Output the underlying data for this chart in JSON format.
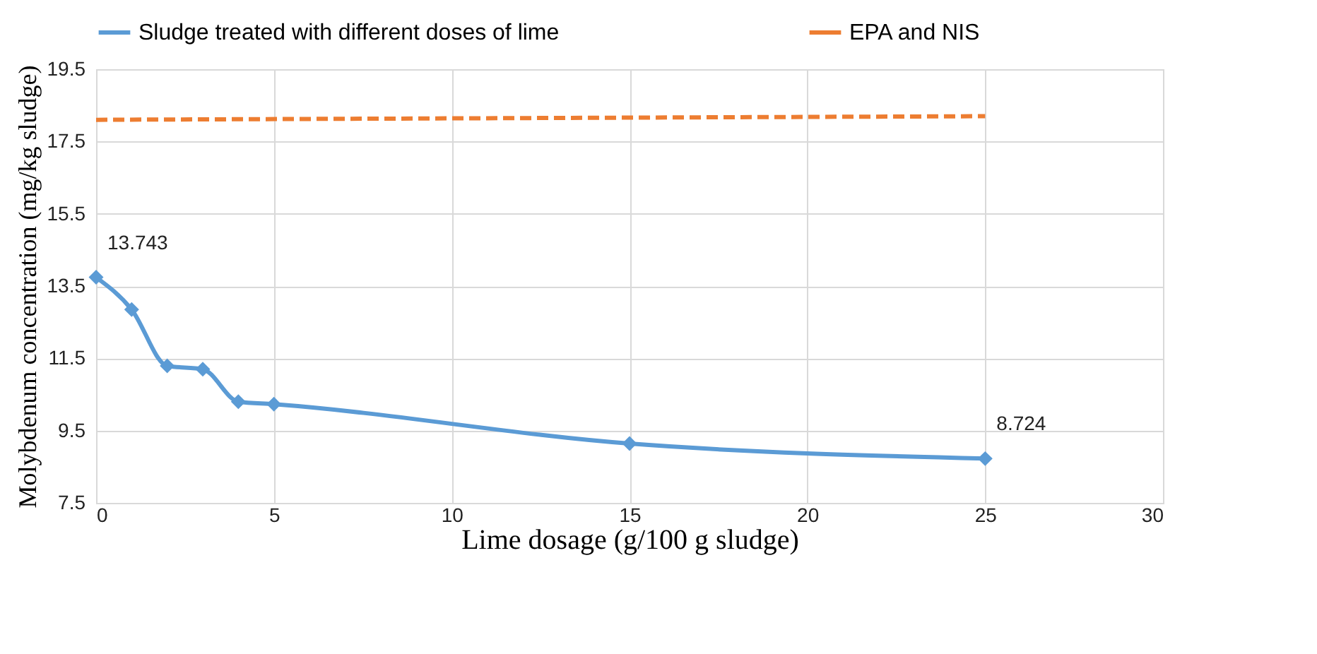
{
  "chart_data": {
    "type": "line",
    "xlabel": "Lime dosage (g/100  g sludge)",
    "ylabel": "Molybdenum concentration (mg/kg sludge)",
    "series": [
      {
        "name": "Sludge treated with different doses of lime",
        "color": "#5b9bd5",
        "marker": "diamond",
        "line_style": "solid",
        "x": [
          0,
          1,
          2,
          3,
          4,
          5,
          15,
          25
        ],
        "values": [
          13.743,
          12.85,
          11.29,
          11.2,
          10.3,
          10.23,
          9.14,
          8.724
        ],
        "value_labels": [
          "13.743",
          null,
          null,
          null,
          null,
          null,
          null,
          "8.724"
        ]
      },
      {
        "name": "EPA and NIS",
        "color": "#ed7d31",
        "marker": "none",
        "line_style": "dashed",
        "x": [
          0,
          25
        ],
        "values": [
          18.1,
          18.2
        ]
      }
    ],
    "xlim": [
      0,
      30
    ],
    "xticks": [
      0,
      5,
      10,
      15,
      20,
      25,
      30
    ],
    "ylim": [
      7.5,
      19.5
    ],
    "yticks": [
      7.5,
      9.5,
      11.5,
      13.5,
      15.5,
      17.5,
      19.5
    ],
    "grid": true,
    "legend": "top"
  }
}
